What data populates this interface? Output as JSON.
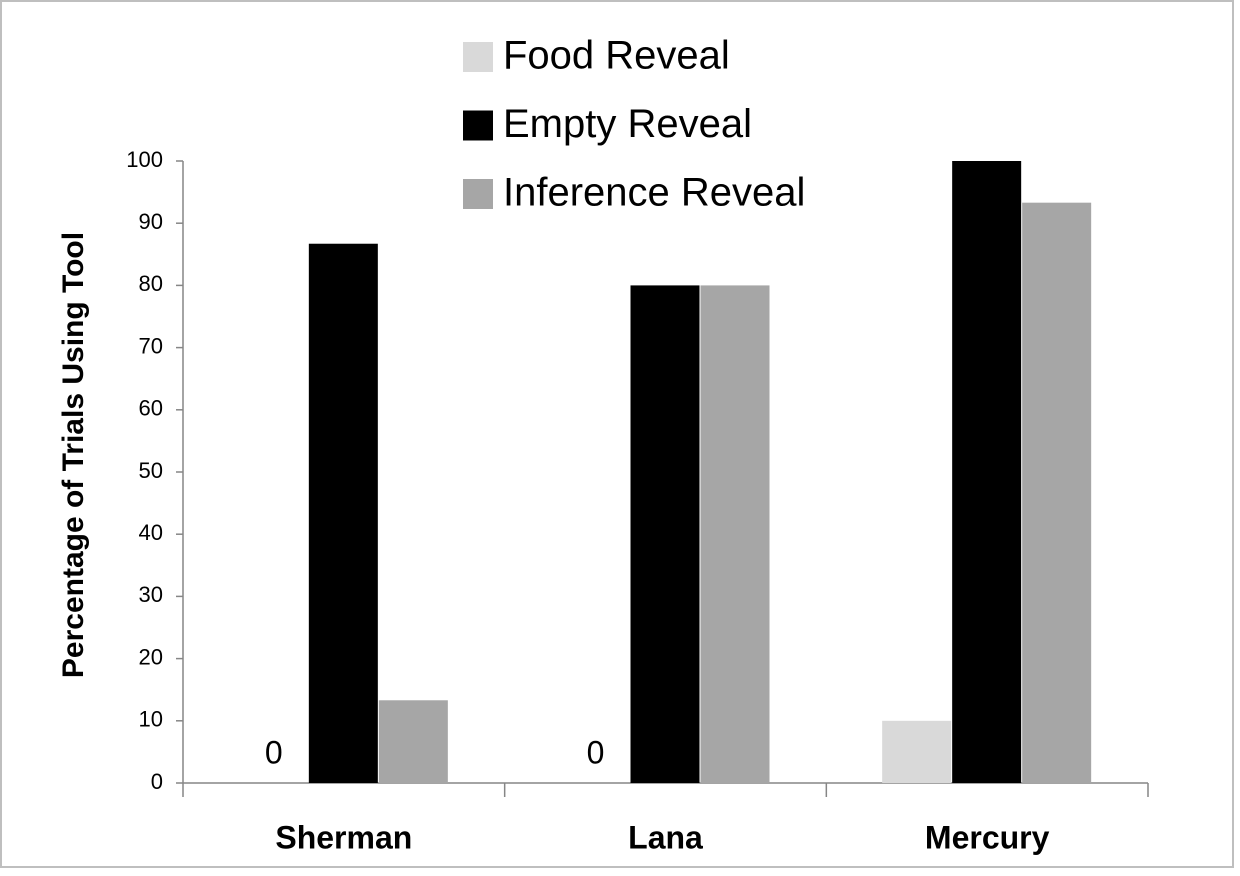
{
  "chart_data": {
    "type": "bar",
    "y_label": "Percentage of Trials Using Tool",
    "categories": [
      "Sherman",
      "Lana",
      "Mercury"
    ],
    "series": [
      {
        "name": "Food Reveal",
        "color": "#d9d9d9",
        "values": [
          0,
          0,
          10
        ],
        "value_labels": [
          "0",
          "0",
          null
        ]
      },
      {
        "name": "Empty Reveal",
        "color": "#000000",
        "values": [
          86.7,
          80,
          100
        ]
      },
      {
        "name": "Inference Reveal",
        "color": "#a6a6a6",
        "values": [
          13.3,
          80,
          93.3
        ]
      }
    ],
    "ylim": [
      0,
      100
    ],
    "yticks": [
      0,
      10,
      20,
      30,
      40,
      50,
      60,
      70,
      80,
      90,
      100
    ],
    "grid": false,
    "legend": "top"
  }
}
